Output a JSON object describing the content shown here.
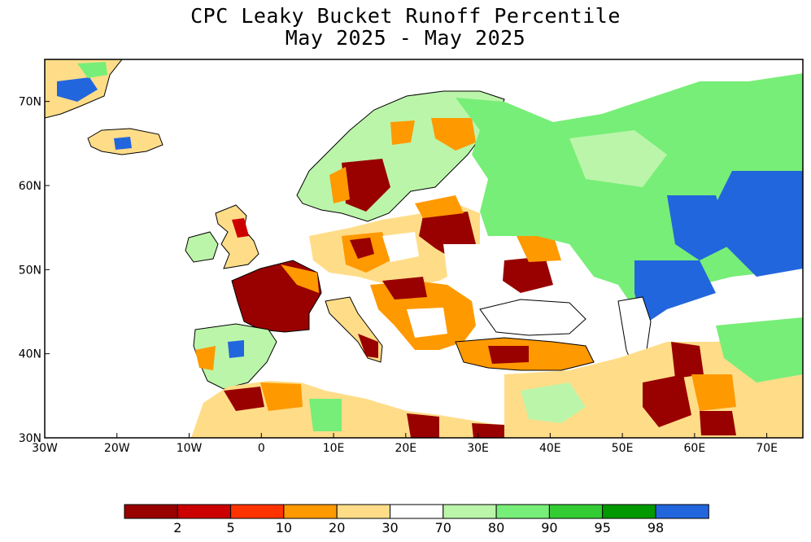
{
  "title": {
    "line1": "CPC Leaky Bucket Runoff Percentile",
    "line2": "May 2025 - May 2025"
  },
  "map": {
    "lon_range": [
      -30,
      75
    ],
    "lat_range": [
      30,
      75
    ],
    "x_ticks": [
      {
        "lon": -30,
        "label": "30W"
      },
      {
        "lon": -20,
        "label": "20W"
      },
      {
        "lon": -10,
        "label": "10W"
      },
      {
        "lon": 0,
        "label": "0"
      },
      {
        "lon": 10,
        "label": "10E"
      },
      {
        "lon": 20,
        "label": "20E"
      },
      {
        "lon": 30,
        "label": "30E"
      },
      {
        "lon": 40,
        "label": "40E"
      },
      {
        "lon": 50,
        "label": "50E"
      },
      {
        "lon": 60,
        "label": "60E"
      },
      {
        "lon": 70,
        "label": "70E"
      }
    ],
    "y_ticks": [
      {
        "lat": 30,
        "label": "30N"
      },
      {
        "lat": 40,
        "label": "40N"
      },
      {
        "lat": 50,
        "label": "50N"
      },
      {
        "lat": 60,
        "label": "60N"
      },
      {
        "lat": 70,
        "label": "70N"
      }
    ]
  },
  "legend": {
    "colors": [
      "#990000",
      "#cc0000",
      "#ff3300",
      "#ff9900",
      "#ffdd88",
      "#ffffff",
      "#bbf5aa",
      "#77ee77",
      "#33cc33",
      "#009900",
      "#2266dd"
    ],
    "labels": [
      "2",
      "5",
      "10",
      "20",
      "30",
      "70",
      "80",
      "90",
      "95",
      "98"
    ]
  }
}
